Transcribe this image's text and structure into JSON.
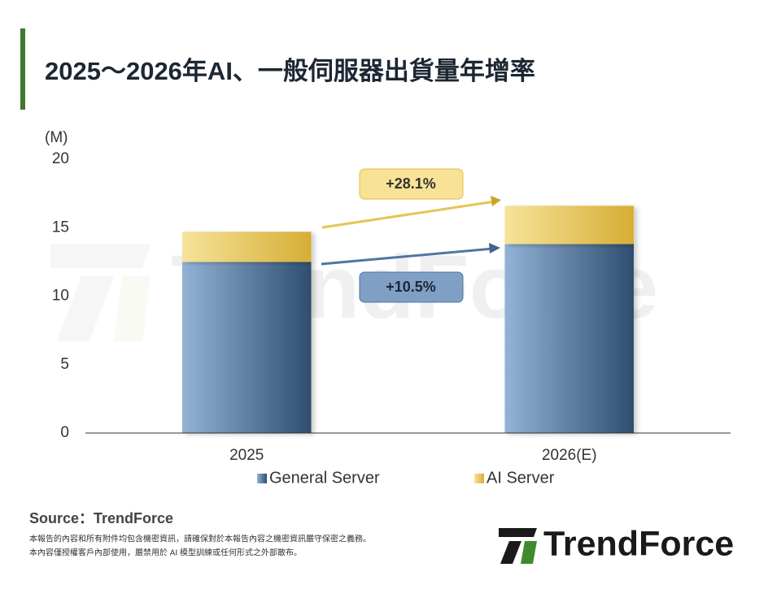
{
  "chart_data": {
    "type": "stacked-bar",
    "title": "2025～2026年AI、一般伺服器出貨量年增率",
    "y_unit": "(M)",
    "categories": [
      "2025",
      "2026(E)"
    ],
    "series": [
      {
        "name": "General Server",
        "color": "#4f76a3",
        "values": [
          12.5,
          13.8
        ]
      },
      {
        "name": "AI Server",
        "color": "#e8c85a",
        "values": [
          2.2,
          2.8
        ]
      }
    ],
    "ylim": [
      0,
      20
    ],
    "yticks": [
      0,
      5,
      10,
      15,
      20
    ],
    "annotations": [
      "+28.1%",
      "+10.5%"
    ]
  },
  "watermark": "TrendForce",
  "footer": {
    "source": "Source：TrendForce",
    "notes": [
      "本報告的內容和所有附件均包含機密資訊，請確保對於本報告內容之機密資訊嚴守保密之義務。",
      "本內容僅授權客戶內部使用，嚴禁用於 AI 模型訓練或任何形式之外部散布。"
    ]
  },
  "logo": "TrendForce"
}
